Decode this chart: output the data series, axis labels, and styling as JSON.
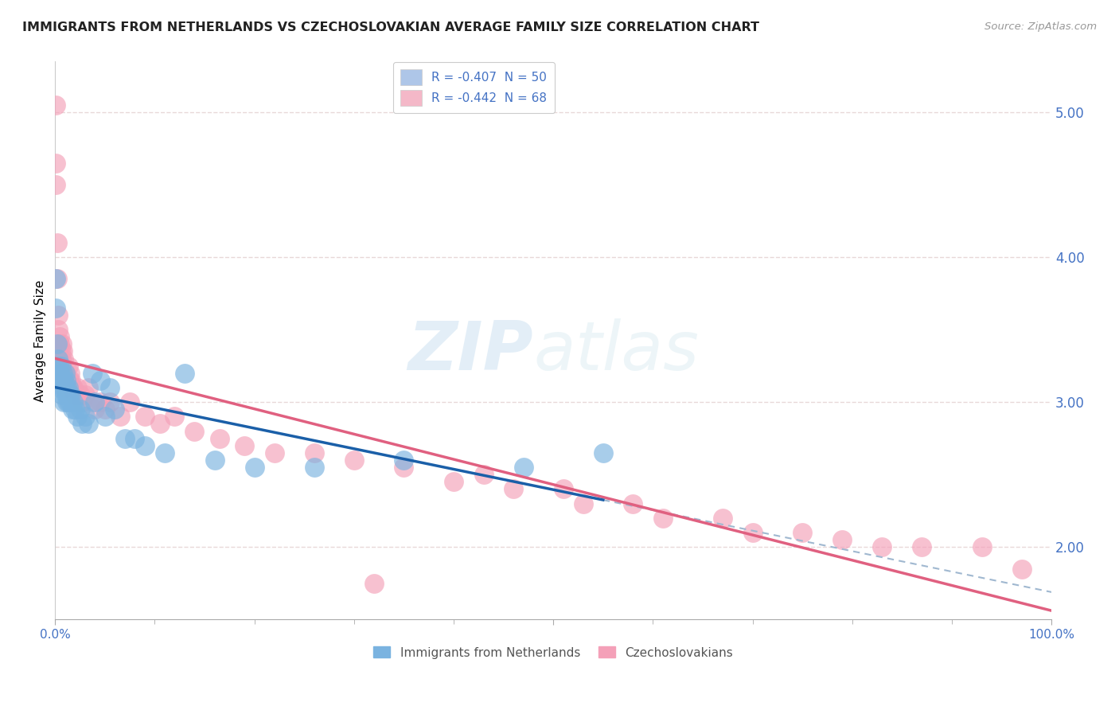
{
  "title": "IMMIGRANTS FROM NETHERLANDS VS CZECHOSLOVAKIAN AVERAGE FAMILY SIZE CORRELATION CHART",
  "source": "Source: ZipAtlas.com",
  "ylabel": "Average Family Size",
  "legend_label1": "R = -0.407  N = 50",
  "legend_label2": "R = -0.442  N = 68",
  "legend_color1": "#aec6e8",
  "legend_color2": "#f4b8c8",
  "bottom_label1": "Immigrants from Netherlands",
  "bottom_label2": "Czechoslovakians",
  "watermark_zip": "ZIP",
  "watermark_atlas": "atlas",
  "title_fontsize": 11.5,
  "source_fontsize": 9.5,
  "ylabel_fontsize": 11,
  "axis_color": "#4472c4",
  "grid_color": "#e8d8d8",
  "scatter_blue_color": "#7ab3e0",
  "scatter_pink_color": "#f4a0b8",
  "line_blue_color": "#1a5fa8",
  "line_pink_color": "#e06080",
  "trend_dash_color": "#a0b8d0",
  "ylim": [
    1.5,
    5.35
  ],
  "xlim": [
    0.0,
    1.0
  ],
  "yticks_right": [
    2.0,
    3.0,
    4.0,
    5.0
  ],
  "blue_points_x": [
    0.001,
    0.001,
    0.002,
    0.003,
    0.004,
    0.005,
    0.005,
    0.006,
    0.007,
    0.007,
    0.008,
    0.008,
    0.009,
    0.009,
    0.01,
    0.01,
    0.011,
    0.011,
    0.012,
    0.012,
    0.013,
    0.013,
    0.014,
    0.015,
    0.016,
    0.017,
    0.018,
    0.02,
    0.022,
    0.025,
    0.027,
    0.03,
    0.033,
    0.037,
    0.04,
    0.045,
    0.05,
    0.055,
    0.06,
    0.07,
    0.08,
    0.09,
    0.11,
    0.13,
    0.16,
    0.2,
    0.26,
    0.35,
    0.47,
    0.55
  ],
  "blue_points_y": [
    3.85,
    3.65,
    3.4,
    3.3,
    3.25,
    3.2,
    3.1,
    3.25,
    3.15,
    3.05,
    3.2,
    3.1,
    3.15,
    3.0,
    3.2,
    3.1,
    3.15,
    3.05,
    3.1,
    3.0,
    3.1,
    3.0,
    3.05,
    3.0,
    3.05,
    2.95,
    3.0,
    2.95,
    2.9,
    2.95,
    2.85,
    2.9,
    2.85,
    3.2,
    3.0,
    3.15,
    2.9,
    3.1,
    2.95,
    2.75,
    2.75,
    2.7,
    2.65,
    3.2,
    2.6,
    2.55,
    2.55,
    2.6,
    2.55,
    2.65
  ],
  "pink_points_x": [
    0.0005,
    0.001,
    0.001,
    0.002,
    0.002,
    0.003,
    0.003,
    0.004,
    0.004,
    0.005,
    0.005,
    0.006,
    0.006,
    0.007,
    0.007,
    0.008,
    0.008,
    0.009,
    0.009,
    0.01,
    0.01,
    0.011,
    0.012,
    0.013,
    0.014,
    0.015,
    0.016,
    0.017,
    0.018,
    0.02,
    0.022,
    0.025,
    0.027,
    0.03,
    0.033,
    0.037,
    0.04,
    0.045,
    0.05,
    0.055,
    0.065,
    0.075,
    0.09,
    0.105,
    0.12,
    0.14,
    0.165,
    0.19,
    0.22,
    0.26,
    0.3,
    0.35,
    0.4,
    0.46,
    0.53,
    0.61,
    0.7,
    0.79,
    0.87,
    0.93,
    0.97,
    0.32,
    0.43,
    0.51,
    0.58,
    0.67,
    0.75,
    0.83
  ],
  "pink_points_y": [
    5.05,
    4.65,
    4.5,
    4.1,
    3.85,
    3.6,
    3.5,
    3.4,
    3.3,
    3.4,
    3.45,
    3.35,
    3.3,
    3.4,
    3.25,
    3.35,
    3.2,
    3.15,
    3.3,
    3.2,
    3.1,
    3.2,
    3.15,
    3.25,
    3.15,
    3.2,
    3.15,
    3.1,
    3.1,
    3.05,
    3.1,
    3.05,
    3.0,
    3.05,
    3.1,
    3.0,
    2.95,
    3.0,
    2.95,
    3.0,
    2.9,
    3.0,
    2.9,
    2.85,
    2.9,
    2.8,
    2.75,
    2.7,
    2.65,
    2.65,
    2.6,
    2.55,
    2.45,
    2.4,
    2.3,
    2.2,
    2.1,
    2.05,
    2.0,
    2.0,
    1.85,
    1.75,
    2.5,
    2.4,
    2.3,
    2.2,
    2.1,
    2.0
  ]
}
